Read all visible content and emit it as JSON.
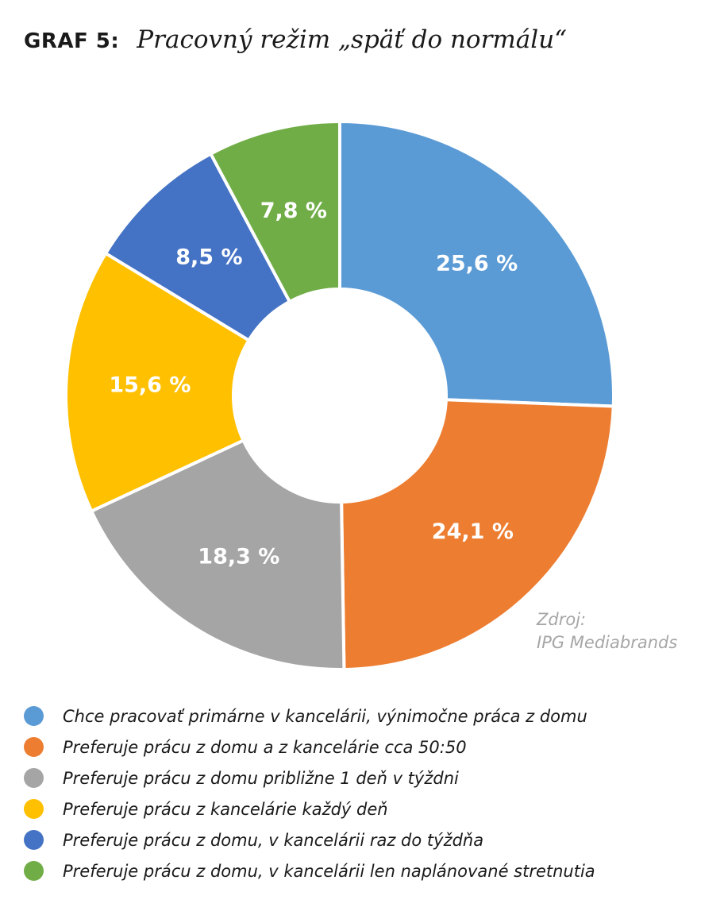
{
  "header": {
    "label": "GRAF 5:",
    "title": "Pracovný režim „späť do normálu“"
  },
  "chart_data": {
    "type": "pie",
    "variant": "donut",
    "title": "Pracovný režim „späť do normálu“",
    "categories": [
      "Chce pracovať primárne v kancelárii, výnimočne práca z domu",
      "Preferuje prácu z domu a z kancelárie cca 50:50",
      "Preferuje prácu z domu približne 1 deň v týždni",
      "Preferuje prácu z kancelárie každý deň",
      "Preferuje prácu z domu, v kancelárii raz do týždňa",
      "Preferuje prácu z domu, v kancelárii len naplánované stretnutia"
    ],
    "values": [
      25.6,
      24.1,
      18.3,
      15.6,
      8.5,
      7.8
    ],
    "value_labels": [
      "25,6 %",
      "24,1 %",
      "18,3 %",
      "15,6 %",
      "8,5 %",
      "7,8 %"
    ],
    "colors": [
      "#5b9bd5",
      "#ed7d31",
      "#a5a5a5",
      "#ffc000",
      "#4472c4",
      "#70ad47"
    ],
    "start": "12 o'clock",
    "direction": "clockwise",
    "legend_position": "bottom",
    "source": {
      "label": "Zdroj:",
      "name": "IPG Mediabrands"
    }
  }
}
